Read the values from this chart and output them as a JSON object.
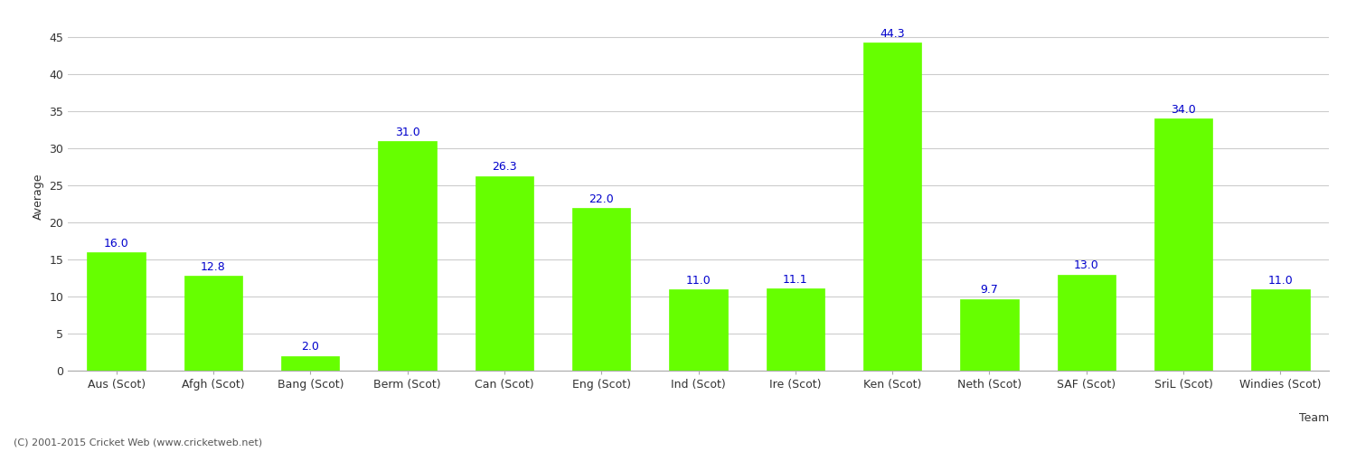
{
  "xlabel": "Team",
  "ylabel": "Average",
  "categories": [
    "Aus (Scot)",
    "Afgh (Scot)",
    "Bang (Scot)",
    "Berm (Scot)",
    "Can (Scot)",
    "Eng (Scot)",
    "Ind (Scot)",
    "Ire (Scot)",
    "Ken (Scot)",
    "Neth (Scot)",
    "SAF (Scot)",
    "SriL (Scot)",
    "Windies (Scot)"
  ],
  "values": [
    16.0,
    12.8,
    2.0,
    31.0,
    26.3,
    22.0,
    11.0,
    11.1,
    44.3,
    9.7,
    13.0,
    34.0,
    11.0
  ],
  "bar_color": "#66ff00",
  "bar_edge_color": "#66ff00",
  "label_color": "#0000cc",
  "label_fontsize": 9,
  "axis_label_fontsize": 9,
  "tick_fontsize": 9,
  "ylim": [
    0,
    47
  ],
  "yticks": [
    0,
    5,
    10,
    15,
    20,
    25,
    30,
    35,
    40,
    45
  ],
  "grid_color": "#cccccc",
  "background_color": "#ffffff",
  "footer_text": "(C) 2001-2015 Cricket Web (www.cricketweb.net)",
  "footer_fontsize": 8,
  "footer_color": "#555555"
}
